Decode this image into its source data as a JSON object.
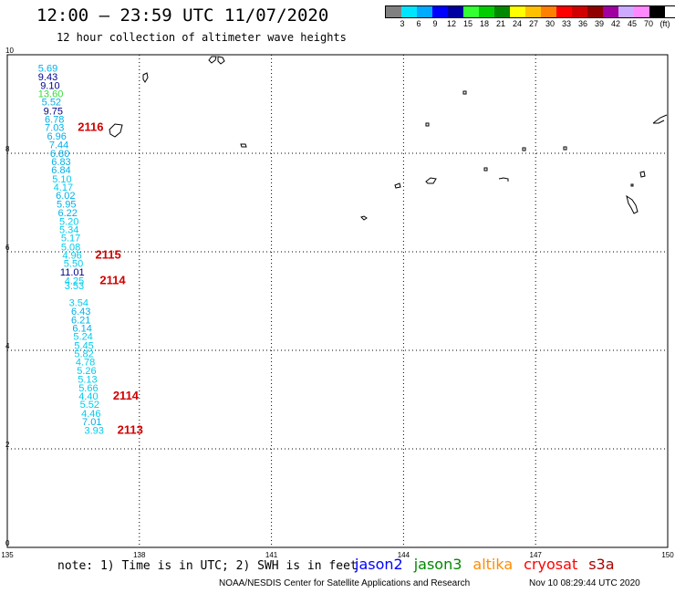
{
  "header": {
    "title": "12:00 – 23:59 UTC 11/07/2020",
    "subtitle": "12 hour collection of altimeter wave heights"
  },
  "legend": {
    "colors": [
      "#808080",
      "#00e5ff",
      "#00aaff",
      "#0000ff",
      "#0000a0",
      "#33ff33",
      "#00cc00",
      "#008800",
      "#ffff00",
      "#ffc000",
      "#ff8000",
      "#ff0000",
      "#d00000",
      "#900000",
      "#a000a0",
      "#ccaaff",
      "#ff88ff",
      "#000000"
    ],
    "labels": [
      "3",
      "6",
      "9",
      "12",
      "15",
      "18",
      "21",
      "24",
      "27",
      "30",
      "33",
      "36",
      "39",
      "42",
      "45",
      "70",
      "(ft)"
    ]
  },
  "axes": {
    "x_ticks": [
      "135",
      "138",
      "141",
      "144",
      "147",
      "150"
    ],
    "y_ticks": [
      "0",
      "2",
      "4",
      "6",
      "8",
      "10"
    ]
  },
  "observations": [
    {
      "v": "5.69",
      "lat": 9.66,
      "lon": 135.7,
      "c": "#00b0e8"
    },
    {
      "v": "9.43",
      "lat": 9.48,
      "lon": 135.7,
      "c": "#00008b"
    },
    {
      "v": "9.10",
      "lat": 9.31,
      "lon": 135.75,
      "c": "#00008b"
    },
    {
      "v": "13.60",
      "lat": 9.14,
      "lon": 135.7,
      "c": "#33dd33"
    },
    {
      "v": "5.52",
      "lat": 8.97,
      "lon": 135.78,
      "c": "#00b0e8"
    },
    {
      "v": "9.75",
      "lat": 8.79,
      "lon": 135.82,
      "c": "#00008b"
    },
    {
      "v": "6.78",
      "lat": 8.62,
      "lon": 135.85,
      "c": "#00b0e8"
    },
    {
      "v": "7.03",
      "lat": 8.45,
      "lon": 135.85,
      "c": "#00b0e8"
    },
    {
      "v": "6.96",
      "lat": 8.28,
      "lon": 135.9,
      "c": "#00b0e8"
    },
    {
      "v": "7.44",
      "lat": 8.1,
      "lon": 135.95,
      "c": "#00b0e8"
    },
    {
      "v": "6.80",
      "lat": 7.93,
      "lon": 135.97,
      "c": "#00b0e8"
    },
    {
      "v": "6.83",
      "lat": 7.76,
      "lon": 136.0,
      "c": "#00b0e8"
    },
    {
      "v": "6.84",
      "lat": 7.59,
      "lon": 136.0,
      "c": "#00b0e8"
    },
    {
      "v": "5.10",
      "lat": 7.41,
      "lon": 136.02,
      "c": "#00ccee"
    },
    {
      "v": "4.17",
      "lat": 7.24,
      "lon": 136.05,
      "c": "#00ccee"
    },
    {
      "v": "6.02",
      "lat": 7.07,
      "lon": 136.1,
      "c": "#00b0e8"
    },
    {
      "v": "5.95",
      "lat": 6.9,
      "lon": 136.12,
      "c": "#00b0e8"
    },
    {
      "v": "6.22",
      "lat": 6.72,
      "lon": 136.15,
      "c": "#00b0e8"
    },
    {
      "v": "5.20",
      "lat": 6.55,
      "lon": 136.18,
      "c": "#00ccee"
    },
    {
      "v": "5.34",
      "lat": 6.38,
      "lon": 136.18,
      "c": "#00ccee"
    },
    {
      "v": "5.17",
      "lat": 6.21,
      "lon": 136.22,
      "c": "#00ccee"
    },
    {
      "v": "5.08",
      "lat": 6.03,
      "lon": 136.22,
      "c": "#00ccee"
    },
    {
      "v": "4.96",
      "lat": 5.86,
      "lon": 136.25,
      "c": "#00ccee"
    },
    {
      "v": "5.50",
      "lat": 5.69,
      "lon": 136.28,
      "c": "#00ccee"
    },
    {
      "v": "11.01",
      "lat": 5.52,
      "lon": 136.2,
      "c": "#00008b"
    },
    {
      "v": "4.25",
      "lat": 5.34,
      "lon": 136.3,
      "c": "#00ccee"
    },
    {
      "v": "3.53",
      "lat": 5.24,
      "lon": 136.3,
      "c": "#00ccee"
    },
    {
      "v": "3.54",
      "lat": 4.9,
      "lon": 136.4,
      "c": "#00ccee"
    },
    {
      "v": "6.43",
      "lat": 4.72,
      "lon": 136.45,
      "c": "#00b0e8"
    },
    {
      "v": "6.21",
      "lat": 4.55,
      "lon": 136.45,
      "c": "#00b0e8"
    },
    {
      "v": "6.14",
      "lat": 4.38,
      "lon": 136.48,
      "c": "#00b0e8"
    },
    {
      "v": "5.24",
      "lat": 4.21,
      "lon": 136.5,
      "c": "#00ccee"
    },
    {
      "v": "5.45",
      "lat": 4.03,
      "lon": 136.52,
      "c": "#00ccee"
    },
    {
      "v": "5.82",
      "lat": 3.86,
      "lon": 136.52,
      "c": "#00ccee"
    },
    {
      "v": "4.78",
      "lat": 3.69,
      "lon": 136.55,
      "c": "#00ccee"
    },
    {
      "v": "5.26",
      "lat": 3.52,
      "lon": 136.58,
      "c": "#00ccee"
    },
    {
      "v": "5.13",
      "lat": 3.34,
      "lon": 136.6,
      "c": "#00ccee"
    },
    {
      "v": "5.66",
      "lat": 3.17,
      "lon": 136.62,
      "c": "#00ccee"
    },
    {
      "v": "4.40",
      "lat": 3.0,
      "lon": 136.62,
      "c": "#00ccee"
    },
    {
      "v": "5.52",
      "lat": 2.83,
      "lon": 136.65,
      "c": "#00ccee"
    },
    {
      "v": "4.46",
      "lat": 2.65,
      "lon": 136.68,
      "c": "#00ccee"
    },
    {
      "v": "7.01",
      "lat": 2.48,
      "lon": 136.7,
      "c": "#00b0e8"
    },
    {
      "v": "3.93",
      "lat": 2.31,
      "lon": 136.75,
      "c": "#00ccee"
    }
  ],
  "passes": [
    {
      "id": "2116",
      "lat": 8.45,
      "lon": 136.6
    },
    {
      "id": "2115",
      "lat": 5.86,
      "lon": 137.0
    },
    {
      "id": "2114",
      "lat": 5.34,
      "lon": 137.1
    },
    {
      "id": "2114",
      "lat": 3.0,
      "lon": 137.4
    },
    {
      "id": "2113",
      "lat": 2.31,
      "lon": 137.5
    }
  ],
  "footer": {
    "note": "note: 1) Time is in UTC; 2) SWH is in feet",
    "satellites": [
      {
        "name": "jason2",
        "color": "#0000ff"
      },
      {
        "name": "jason3",
        "color": "#008800"
      },
      {
        "name": "altika",
        "color": "#ff8c00"
      },
      {
        "name": "cryosat",
        "color": "#ff0000"
      },
      {
        "name": "s3a",
        "color": "#aa0000"
      }
    ],
    "credit": "NOAA/NESDIS Center for Satellite Applications and Research",
    "timestamp": "Nov 10 08:29:44 UTC 2020"
  }
}
